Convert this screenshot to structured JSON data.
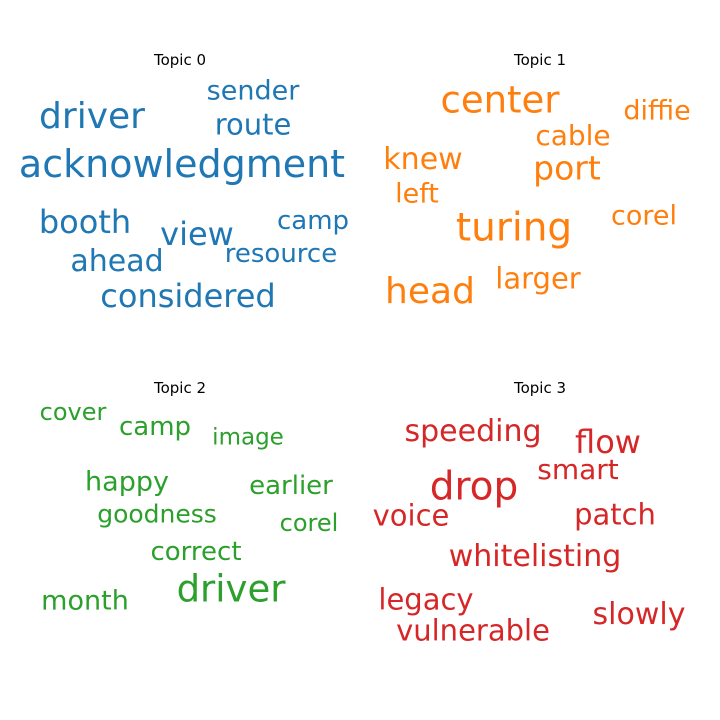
{
  "chart_data": [
    {
      "type": "wordcloud",
      "title": "Topic 0",
      "color": "#1f77b4",
      "words": [
        {
          "text": "driver"
        },
        {
          "text": "sender"
        },
        {
          "text": "route"
        },
        {
          "text": "acknowledgment"
        },
        {
          "text": "booth"
        },
        {
          "text": "camp"
        },
        {
          "text": "view"
        },
        {
          "text": "resource"
        },
        {
          "text": "ahead"
        },
        {
          "text": "considered"
        }
      ]
    },
    {
      "type": "wordcloud",
      "title": "Topic 1",
      "color": "#ff7f0e",
      "words": [
        {
          "text": "center"
        },
        {
          "text": "diffie"
        },
        {
          "text": "cable"
        },
        {
          "text": "knew"
        },
        {
          "text": "port"
        },
        {
          "text": "left"
        },
        {
          "text": "turing"
        },
        {
          "text": "corel"
        },
        {
          "text": "larger"
        },
        {
          "text": "head"
        }
      ]
    },
    {
      "type": "wordcloud",
      "title": "Topic 2",
      "color": "#2ca02c",
      "words": [
        {
          "text": "cover"
        },
        {
          "text": "camp"
        },
        {
          "text": "image"
        },
        {
          "text": "happy"
        },
        {
          "text": "earlier"
        },
        {
          "text": "goodness"
        },
        {
          "text": "corel"
        },
        {
          "text": "correct"
        },
        {
          "text": "driver"
        },
        {
          "text": "month"
        }
      ]
    },
    {
      "type": "wordcloud",
      "title": "Topic 3",
      "color": "#d62728",
      "words": [
        {
          "text": "speeding"
        },
        {
          "text": "flow"
        },
        {
          "text": "smart"
        },
        {
          "text": "drop"
        },
        {
          "text": "voice"
        },
        {
          "text": "patch"
        },
        {
          "text": "whitelisting"
        },
        {
          "text": "legacy"
        },
        {
          "text": "slowly"
        },
        {
          "text": "vulnerable"
        }
      ]
    }
  ]
}
